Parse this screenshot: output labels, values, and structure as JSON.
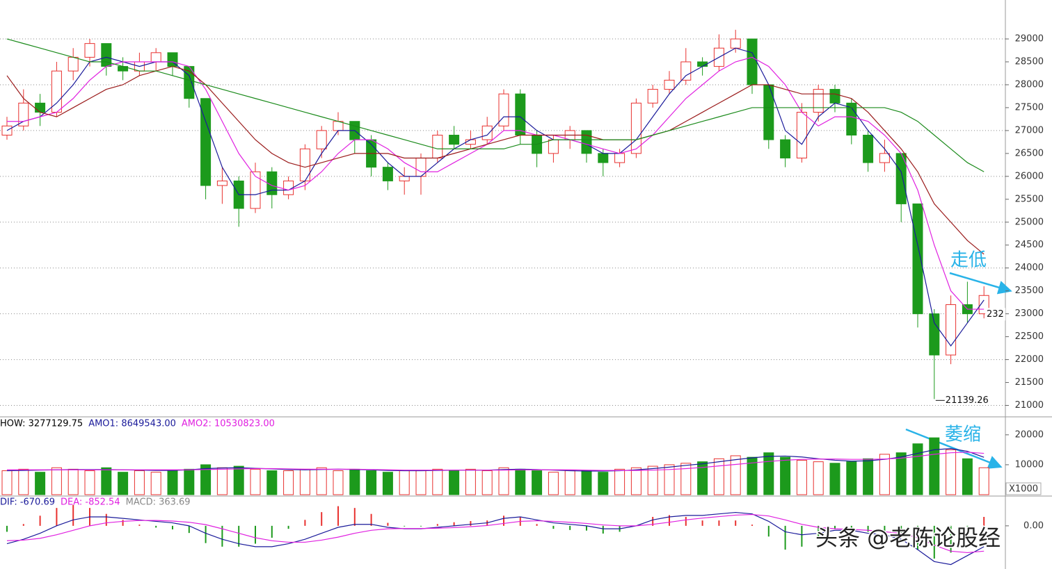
{
  "chart_data": [
    {
      "type": "candlestick",
      "open": [
        26900,
        27100,
        27600,
        27400,
        28300,
        28600,
        28900,
        28400,
        28300,
        28500,
        28700,
        28400,
        27700,
        25800,
        25900,
        25300,
        26100,
        25600,
        25900,
        26600,
        27000,
        27200,
        26800,
        26200,
        25900,
        26000,
        26400,
        26900,
        26700,
        26800,
        27100,
        27800,
        26900,
        26500,
        26800,
        27000,
        26500,
        26300,
        26500,
        27600,
        27900,
        28100,
        28500,
        28400,
        28800,
        29000,
        28000,
        26800,
        26400,
        27400,
        27900,
        27600,
        26900,
        26300,
        26500,
        25400,
        23000,
        22100,
        23200,
        23000
      ],
      "high": [
        27300,
        27900,
        27800,
        28500,
        28800,
        29000,
        28900,
        28600,
        28700,
        28800,
        28700,
        28400,
        27700,
        26200,
        26000,
        26300,
        26200,
        26000,
        26700,
        27100,
        27400,
        27200,
        26900,
        26300,
        26200,
        26500,
        27000,
        27100,
        27000,
        27300,
        27900,
        27900,
        27000,
        26900,
        27100,
        27000,
        26600,
        26600,
        27700,
        28000,
        28300,
        28800,
        28600,
        29100,
        29200,
        29000,
        28000,
        26900,
        27600,
        28000,
        28000,
        27700,
        27000,
        26800,
        26500,
        25400,
        23100,
        23400,
        23700,
        23600
      ],
      "low": [
        26800,
        27000,
        27100,
        27300,
        28100,
        28400,
        28200,
        28100,
        28200,
        28300,
        28200,
        27500,
        25500,
        25400,
        24900,
        25200,
        25300,
        25500,
        25700,
        26400,
        26900,
        26500,
        26000,
        25700,
        25600,
        25600,
        26300,
        26600,
        26600,
        26700,
        27000,
        26700,
        26200,
        26300,
        26600,
        26300,
        26000,
        26200,
        26400,
        27500,
        27800,
        28000,
        28200,
        28300,
        28700,
        27800,
        26600,
        26200,
        26300,
        27200,
        27400,
        26700,
        26100,
        26100,
        25000,
        22700,
        21139.26,
        21900,
        22800,
        22900
      ],
      "close": [
        27100,
        27600,
        27400,
        28300,
        28600,
        28900,
        28400,
        28300,
        28500,
        28700,
        28400,
        27700,
        25800,
        25900,
        25300,
        26100,
        25600,
        25900,
        26600,
        27000,
        27200,
        26800,
        26200,
        25900,
        26000,
        26400,
        26900,
        26700,
        26800,
        27100,
        27800,
        26900,
        26500,
        26800,
        27000,
        26500,
        26300,
        26500,
        27600,
        27900,
        28100,
        28500,
        28400,
        28800,
        29000,
        28000,
        26800,
        26400,
        27400,
        27900,
        27600,
        26900,
        26300,
        26500,
        25400,
        23000,
        22100,
        23200,
        23000,
        23400
      ],
      "up_color": "#e8312f",
      "down_color": "#1c9a1c",
      "series": [
        {
          "color": "#1a1a9a",
          "values": [
            27000,
            27200,
            27300,
            27600,
            28000,
            28500,
            28600,
            28500,
            28400,
            28500,
            28500,
            28200,
            27200,
            26200,
            25600,
            25600,
            25700,
            25700,
            25900,
            26500,
            27000,
            27000,
            26700,
            26300,
            26000,
            26000,
            26300,
            26600,
            26800,
            26900,
            27300,
            27300,
            27000,
            26800,
            26800,
            26700,
            26500,
            26500,
            26800,
            27300,
            27800,
            28200,
            28400,
            28600,
            28800,
            28700,
            28000,
            27000,
            26700,
            27300,
            27600,
            27500,
            27000,
            26600,
            26100,
            24500,
            22800,
            22300,
            22800,
            23300
          ]
        },
        {
          "color": "#e020e0",
          "values": [
            27200,
            27200,
            27300,
            27400,
            27700,
            28100,
            28400,
            28500,
            28500,
            28500,
            28500,
            28400,
            27900,
            27200,
            26500,
            26000,
            25800,
            25700,
            25800,
            26100,
            26500,
            26800,
            26800,
            26600,
            26300,
            26100,
            26100,
            26300,
            26500,
            26700,
            27000,
            27000,
            26900,
            26900,
            26800,
            26700,
            26600,
            26500,
            26600,
            26900,
            27300,
            27700,
            28000,
            28300,
            28500,
            28600,
            28400,
            28000,
            27400,
            27100,
            27300,
            27300,
            27200,
            26900,
            26500,
            25700,
            24500,
            23500,
            23100,
            23100
          ]
        },
        {
          "color": "#9a1a1a",
          "values": [
            28200,
            27700,
            27400,
            27300,
            27500,
            27700,
            27900,
            28000,
            28200,
            28300,
            28400,
            28300,
            28000,
            27600,
            27200,
            26800,
            26500,
            26300,
            26200,
            26300,
            26400,
            26500,
            26500,
            26500,
            26400,
            26400,
            26400,
            26500,
            26600,
            26700,
            26800,
            26900,
            26900,
            26900,
            26900,
            26900,
            26800,
            26800,
            26800,
            26900,
            27000,
            27200,
            27400,
            27600,
            27800,
            28000,
            28000,
            27900,
            27800,
            27800,
            27800,
            27700,
            27400,
            27000,
            26600,
            26100,
            25400,
            25000,
            24600,
            24300
          ]
        },
        {
          "color": "#1a8a1a",
          "values": [
            29000,
            28900,
            28800,
            28700,
            28600,
            28500,
            28500,
            28400,
            28300,
            28300,
            28200,
            28100,
            28000,
            27900,
            27800,
            27700,
            27600,
            27500,
            27400,
            27300,
            27200,
            27100,
            27000,
            26900,
            26800,
            26700,
            26600,
            26600,
            26600,
            26600,
            26600,
            26700,
            26700,
            26800,
            26800,
            26800,
            26800,
            26800,
            26800,
            26900,
            27000,
            27100,
            27200,
            27300,
            27400,
            27500,
            27500,
            27500,
            27500,
            27500,
            27500,
            27500,
            27500,
            27500,
            27400,
            27200,
            26900,
            26600,
            26300,
            26100
          ]
        }
      ],
      "ylim": [
        20750,
        29850
      ],
      "yticks": [
        21000,
        21500,
        22000,
        22500,
        23000,
        23500,
        24000,
        24500,
        25000,
        25500,
        26000,
        26500,
        27000,
        27500,
        28000,
        28500,
        29000
      ],
      "grid": true,
      "annotations": [
        "走低",
        "232"
      ]
    },
    {
      "type": "bar",
      "header": [
        "HOW: 3277129.75",
        "AMO1: 8649543.00",
        "AMO2: 10530823.00"
      ],
      "header_colors": [
        "#000000",
        "#1a1a9a",
        "#e020e0"
      ],
      "values": [
        8000,
        8500,
        7500,
        9000,
        8500,
        8000,
        9000,
        7500,
        8000,
        7500,
        8000,
        8500,
        10000,
        9000,
        9500,
        8500,
        8000,
        8000,
        8500,
        9000,
        8000,
        8500,
        8000,
        7500,
        8000,
        8000,
        8500,
        8000,
        8500,
        8000,
        9000,
        8500,
        8000,
        7500,
        8000,
        8000,
        7500,
        8500,
        9000,
        9500,
        10000,
        10500,
        11000,
        12000,
        13000,
        12500,
        14000,
        12500,
        11500,
        11000,
        10500,
        11000,
        12000,
        13500,
        14000,
        17000,
        19000,
        15000,
        12000,
        9000
      ],
      "series": [
        {
          "color": "#1a1a9a",
          "values": [
            8000,
            8100,
            8200,
            8300,
            8400,
            8400,
            8400,
            8300,
            8200,
            8100,
            8100,
            8300,
            8700,
            8900,
            9000,
            8800,
            8600,
            8400,
            8300,
            8400,
            8500,
            8400,
            8300,
            8100,
            8000,
            8000,
            8100,
            8200,
            8200,
            8200,
            8400,
            8500,
            8400,
            8200,
            8000,
            7900,
            7900,
            8000,
            8300,
            8700,
            9200,
            9800,
            10300,
            11000,
            11700,
            12300,
            12800,
            12900,
            12600,
            12000,
            11500,
            11200,
            11300,
            11800,
            12600,
            13800,
            15000,
            15400,
            14500,
            12500
          ]
        },
        {
          "color": "#e020e0",
          "values": [
            8300,
            8300,
            8300,
            8300,
            8300,
            8300,
            8300,
            8300,
            8300,
            8300,
            8300,
            8300,
            8400,
            8500,
            8600,
            8700,
            8700,
            8600,
            8500,
            8500,
            8500,
            8500,
            8400,
            8300,
            8200,
            8200,
            8200,
            8200,
            8200,
            8200,
            8200,
            8300,
            8300,
            8300,
            8300,
            8200,
            8100,
            8100,
            8100,
            8200,
            8400,
            8700,
            9100,
            9600,
            10100,
            10600,
            11100,
            11500,
            11800,
            11900,
            11900,
            11800,
            11800,
            11900,
            12200,
            12800,
            13500,
            14000,
            14200,
            13800
          ]
        }
      ],
      "ylim": [
        0,
        26000
      ],
      "yticks": [
        10000,
        20000
      ],
      "unit": "X1000",
      "annotations": [
        "萎缩"
      ]
    },
    {
      "type": "macd",
      "header": [
        "DIF: -670.69",
        "DEA: -852.54",
        "MACD: 363.69"
      ],
      "header_colors": [
        "#1a1a9a",
        "#e020e0",
        "#888888"
      ],
      "values": [
        -200,
        60,
        340,
        600,
        700,
        600,
        400,
        200,
        40,
        -60,
        -120,
        -240,
        -580,
        -700,
        -700,
        -600,
        -400,
        -100,
        200,
        460,
        660,
        600,
        400,
        100,
        -20,
        -20,
        60,
        120,
        160,
        180,
        340,
        300,
        60,
        -100,
        -140,
        -160,
        -260,
        -200,
        0,
        300,
        360,
        300,
        180,
        180,
        180,
        40,
        -360,
        -800,
        -700,
        -400,
        -100,
        -60,
        -200,
        -200,
        -400,
        -800,
        -1100,
        -900,
        -200,
        300
      ],
      "series": [
        {
          "color": "#1a1a9a",
          "values": [
            -600,
            -450,
            -250,
            0,
            200,
            300,
            300,
            250,
            200,
            150,
            100,
            0,
            -250,
            -450,
            -600,
            -700,
            -700,
            -600,
            -450,
            -250,
            -50,
            50,
            50,
            -50,
            -100,
            -100,
            -50,
            0,
            50,
            100,
            250,
            300,
            200,
            100,
            50,
            0,
            -100,
            -100,
            0,
            200,
            300,
            350,
            350,
            400,
            450,
            400,
            150,
            -200,
            -300,
            -250,
            -150,
            -150,
            -250,
            -300,
            -450,
            -800,
            -1200,
            -1300,
            -1000,
            -700
          ]
        },
        {
          "color": "#e020e0",
          "values": [
            -500,
            -480,
            -420,
            -300,
            -150,
            0,
            100,
            150,
            180,
            180,
            160,
            120,
            40,
            -100,
            -250,
            -400,
            -500,
            -550,
            -550,
            -480,
            -380,
            -250,
            -150,
            -100,
            -90,
            -90,
            -80,
            -60,
            -30,
            10,
            80,
            150,
            170,
            150,
            120,
            80,
            30,
            0,
            0,
            50,
            120,
            200,
            260,
            310,
            360,
            380,
            330,
            200,
            50,
            -50,
            -100,
            -120,
            -150,
            -200,
            -250,
            -400,
            -650,
            -850,
            -900,
            -850
          ]
        }
      ],
      "ylim": [
        -1450,
        1000
      ],
      "yticks": [
        {
          "value": 0,
          "label": "0.00"
        }
      ],
      "watermark": "头条 @老陈论股经"
    }
  ]
}
